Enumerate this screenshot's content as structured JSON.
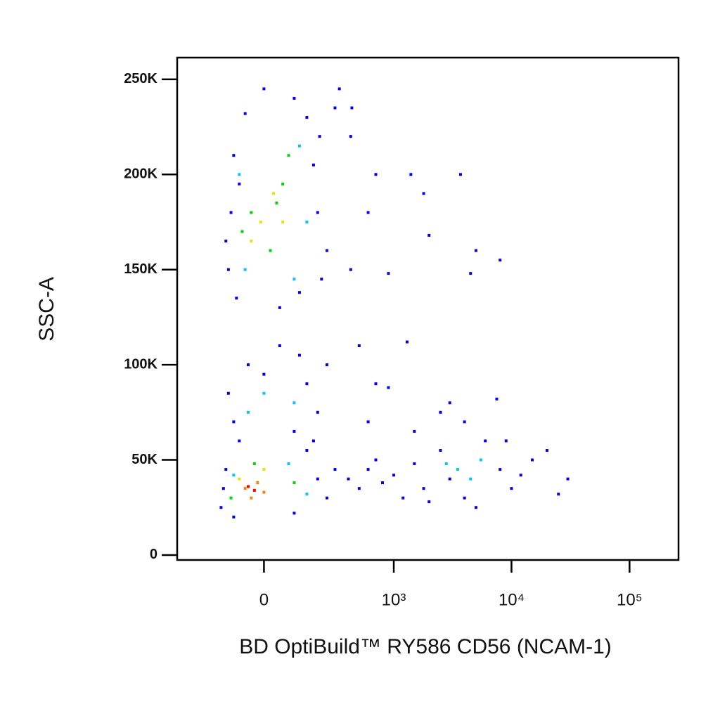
{
  "chart_data": {
    "type": "scatter",
    "x_label": "BD OptiBuild™ RY586 CD56 (NCAM-1)",
    "y_label": "SSC-A",
    "xscale": "biexponential",
    "xlim": [
      -420,
      260000
    ],
    "xticks": [
      0,
      {
        "value": 1000,
        "label": "10³"
      },
      {
        "value": 10000,
        "label": "10⁴"
      },
      {
        "value": 100000,
        "label": "10⁵"
      }
    ],
    "ylim": [
      -2600,
      261400
    ],
    "yticks": [
      0,
      {
        "value": 50000,
        "label": "50K"
      },
      {
        "value": 100000,
        "label": "100K"
      },
      {
        "value": 150000,
        "label": "150K"
      },
      {
        "value": 200000,
        "label": "200K"
      },
      {
        "value": 250000,
        "label": "250K"
      }
    ],
    "series": [
      {
        "color": "#0000ff",
        "x": [
          -120,
          -100,
          -90,
          150,
          200,
          220,
          180,
          -110,
          100,
          -60,
          50,
          250,
          -130,
          120,
          210,
          0,
          300,
          -80,
          -100,
          -50,
          50,
          150,
          200,
          100,
          -120,
          0,
          250,
          -80,
          120,
          180,
          -150,
          -130,
          100,
          200,
          250,
          150,
          -100,
          300,
          -140,
          400,
          500,
          600,
          800,
          1000,
          1200,
          1500,
          1800,
          2500,
          3000,
          4000,
          6000,
          8000,
          10000,
          15000,
          20000,
          25000,
          30000,
          700,
          2000,
          5000,
          12000,
          420,
          700,
          1400,
          1800,
          2000,
          3700,
          5000,
          8000,
          600,
          4500,
          900,
          500,
          1300,
          700,
          900,
          420,
          3000,
          7500,
          4000,
          2500,
          600,
          1500,
          9000,
          330,
          430
        ],
        "y": [
          150000,
          210000,
          135000,
          230000,
          180000,
          145000,
          205000,
          180000,
          240000,
          232000,
          130000,
          160000,
          165000,
          138000,
          220000,
          245000,
          235000,
          195000,
          70000,
          100000,
          110000,
          90000,
          75000,
          65000,
          85000,
          95000,
          100000,
          60000,
          105000,
          60000,
          25000,
          45000,
          22000,
          40000,
          30000,
          55000,
          20000,
          45000,
          35000,
          40000,
          35000,
          45000,
          38000,
          42000,
          30000,
          48000,
          35000,
          55000,
          40000,
          30000,
          60000,
          45000,
          35000,
          50000,
          55000,
          32000,
          40000,
          50000,
          28000,
          25000,
          42000,
          220000,
          200000,
          200000,
          190000,
          168000,
          200000,
          160000,
          155000,
          180000,
          148000,
          148000,
          110000,
          112000,
          90000,
          88000,
          150000,
          80000,
          82000,
          70000,
          75000,
          70000,
          65000,
          60000,
          245000,
          235000
        ]
      },
      {
        "color": "#00c8ff",
        "x": [
          -80,
          150,
          -60,
          120,
          100,
          0,
          100,
          -50,
          -100,
          150,
          80,
          3500,
          5500,
          4500,
          2800
        ],
        "y": [
          200000,
          175000,
          150000,
          215000,
          145000,
          85000,
          80000,
          75000,
          42000,
          32000,
          48000,
          45000,
          50000,
          40000,
          48000
        ]
      },
      {
        "color": "#00d800",
        "x": [
          -40,
          60,
          20,
          -70,
          80,
          40,
          -30,
          100,
          -110
        ],
        "y": [
          180000,
          195000,
          160000,
          170000,
          210000,
          185000,
          48000,
          38000,
          30000
        ]
      },
      {
        "color": "#e6e600",
        "x": [
          -10,
          30,
          -40,
          60,
          0,
          -80
        ],
        "y": [
          175000,
          190000,
          165000,
          175000,
          45000,
          40000
        ]
      },
      {
        "color": "#ff8000",
        "x": [
          -60,
          -20,
          -40,
          0
        ],
        "y": [
          35000,
          38000,
          30000,
          33000
        ]
      },
      {
        "color": "#ff0000",
        "x": [
          -30,
          -50
        ],
        "y": [
          34000,
          36000
        ]
      }
    ]
  }
}
